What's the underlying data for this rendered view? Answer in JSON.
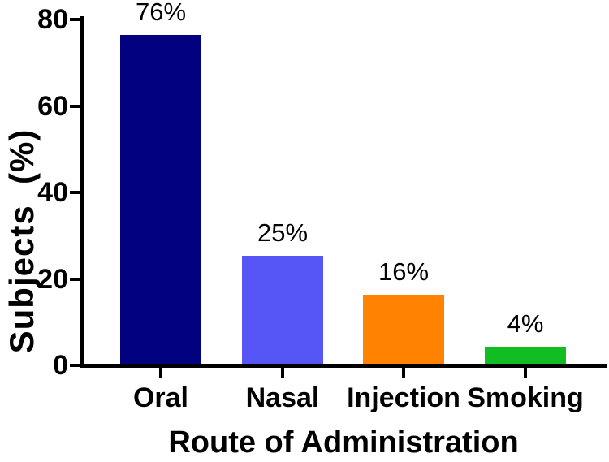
{
  "chart_data": {
    "type": "bar",
    "title": "",
    "xlabel": "Route of Administration",
    "ylabel": "Subjects  (%)",
    "categories": [
      "Oral",
      "Nasal",
      "Injection",
      "Smoking"
    ],
    "values": [
      76,
      25,
      16,
      4
    ],
    "bar_labels": [
      "76%",
      "25%",
      "16%",
      "4%"
    ],
    "bar_colors": [
      "#020280",
      "#5656F7",
      "#FF8300",
      "#12BD23"
    ],
    "ylim": [
      0,
      80
    ],
    "yticks": [
      0,
      20,
      40,
      60,
      80
    ],
    "ytick_labels": [
      "0",
      "20",
      "40",
      "60",
      "80"
    ],
    "grid": false,
    "legend": "none",
    "axis_color": "#000000",
    "text_color": "#000000",
    "background": "#FFFFFF"
  }
}
